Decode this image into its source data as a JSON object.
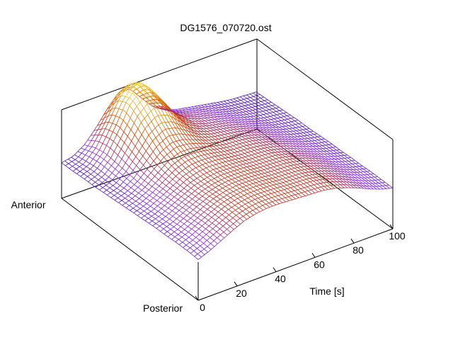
{
  "chart_data": {
    "type": "surface",
    "title": "DG1576_070720.ost",
    "x_axis": {
      "label": "Time [s]",
      "range": [
        0,
        100
      ],
      "ticks": [
        0,
        20,
        40,
        60,
        80,
        100
      ]
    },
    "y_axis": {
      "start_label": "Anterior",
      "end_label": "Posterior"
    },
    "grid": false,
    "legend": "none",
    "colormap": [
      "#3a0ca3",
      "#8a2be2",
      "#b03030",
      "#d04a00",
      "#e0a020",
      "#ffff55"
    ],
    "surface_rows": [
      [
        0.05,
        0.08,
        0.18,
        0.35,
        0.55,
        0.72,
        0.7,
        0.52,
        0.35,
        0.25,
        0.2,
        0.17,
        0.14,
        0.11,
        0.08,
        0.06,
        0.05,
        0.04
      ],
      [
        0.05,
        0.1,
        0.25,
        0.5,
        0.78,
        0.95,
        0.9,
        0.68,
        0.45,
        0.32,
        0.26,
        0.22,
        0.18,
        0.14,
        0.1,
        0.08,
        0.06,
        0.05
      ],
      [
        0.06,
        0.12,
        0.28,
        0.55,
        0.85,
        1.0,
        0.92,
        0.7,
        0.48,
        0.36,
        0.3,
        0.26,
        0.22,
        0.17,
        0.13,
        0.1,
        0.08,
        0.06
      ],
      [
        0.06,
        0.12,
        0.26,
        0.5,
        0.75,
        0.88,
        0.82,
        0.64,
        0.46,
        0.37,
        0.32,
        0.29,
        0.25,
        0.2,
        0.15,
        0.11,
        0.09,
        0.07
      ],
      [
        0.07,
        0.12,
        0.24,
        0.42,
        0.62,
        0.72,
        0.68,
        0.56,
        0.44,
        0.38,
        0.35,
        0.32,
        0.28,
        0.23,
        0.18,
        0.13,
        0.1,
        0.08
      ],
      [
        0.08,
        0.13,
        0.22,
        0.36,
        0.5,
        0.58,
        0.56,
        0.5,
        0.43,
        0.39,
        0.37,
        0.35,
        0.31,
        0.26,
        0.2,
        0.15,
        0.11,
        0.08
      ],
      [
        0.09,
        0.14,
        0.22,
        0.33,
        0.44,
        0.5,
        0.5,
        0.47,
        0.43,
        0.4,
        0.39,
        0.37,
        0.33,
        0.28,
        0.22,
        0.16,
        0.12,
        0.09
      ],
      [
        0.1,
        0.15,
        0.23,
        0.32,
        0.41,
        0.46,
        0.47,
        0.46,
        0.43,
        0.41,
        0.4,
        0.38,
        0.35,
        0.3,
        0.24,
        0.18,
        0.13,
        0.1
      ],
      [
        0.11,
        0.16,
        0.24,
        0.32,
        0.4,
        0.44,
        0.46,
        0.45,
        0.44,
        0.42,
        0.41,
        0.4,
        0.36,
        0.31,
        0.25,
        0.19,
        0.14,
        0.1
      ],
      [
        0.12,
        0.17,
        0.25,
        0.33,
        0.4,
        0.44,
        0.46,
        0.46,
        0.45,
        0.43,
        0.42,
        0.41,
        0.38,
        0.33,
        0.27,
        0.2,
        0.15,
        0.11
      ],
      [
        0.12,
        0.18,
        0.26,
        0.34,
        0.41,
        0.45,
        0.47,
        0.47,
        0.46,
        0.44,
        0.43,
        0.42,
        0.39,
        0.34,
        0.28,
        0.21,
        0.15,
        0.11
      ],
      [
        0.13,
        0.19,
        0.27,
        0.35,
        0.42,
        0.46,
        0.48,
        0.48,
        0.47,
        0.45,
        0.44,
        0.43,
        0.4,
        0.35,
        0.29,
        0.22,
        0.16,
        0.12
      ],
      [
        0.13,
        0.19,
        0.27,
        0.35,
        0.42,
        0.46,
        0.48,
        0.48,
        0.47,
        0.46,
        0.45,
        0.44,
        0.41,
        0.36,
        0.29,
        0.22,
        0.16,
        0.12
      ],
      [
        0.12,
        0.18,
        0.26,
        0.34,
        0.41,
        0.45,
        0.47,
        0.47,
        0.46,
        0.45,
        0.44,
        0.43,
        0.4,
        0.35,
        0.29,
        0.22,
        0.16,
        0.12
      ]
    ]
  }
}
